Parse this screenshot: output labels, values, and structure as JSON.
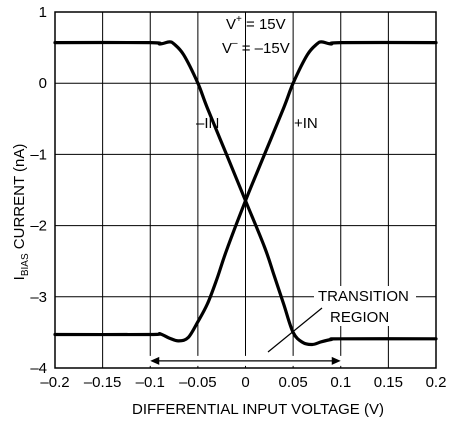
{
  "chart_data": {
    "type": "line",
    "xlabel": "DIFFERENTIAL INPUT VOLTAGE (V)",
    "ylabel": {
      "prefix": "I",
      "subscript": "BIAS",
      "suffix": " CURRENT (nA)"
    },
    "xlim": [
      -0.2,
      0.2
    ],
    "ylim": [
      -4,
      1
    ],
    "xticks": [
      -0.2,
      -0.15,
      -0.1,
      -0.05,
      0,
      0.05,
      0.1,
      0.15,
      0.2
    ],
    "xtick_labels": [
      "–0.2",
      "–0.15",
      "–0.1",
      "–0.05",
      "0",
      "0.05",
      "0.1",
      "0.15",
      "0.2"
    ],
    "yticks": [
      1,
      0,
      -1,
      -2,
      -3,
      -4
    ],
    "ytick_labels": [
      "1",
      "0",
      "–1",
      "–2",
      "–3",
      "–4"
    ],
    "grid": true,
    "series": [
      {
        "name": "–IN",
        "x": [
          -0.2,
          -0.1,
          -0.09,
          -0.08,
          -0.075,
          -0.065,
          -0.05,
          -0.04,
          -0.02,
          0,
          0.02,
          0.03,
          0.04,
          0.05,
          0.06,
          0.07,
          0.08,
          0.09,
          0.1,
          0.2
        ],
        "y": [
          0.57,
          0.57,
          0.55,
          0.58,
          0.55,
          0.4,
          0.0,
          -0.35,
          -1.0,
          -1.65,
          -2.3,
          -2.7,
          -3.1,
          -3.5,
          -3.64,
          -3.67,
          -3.63,
          -3.6,
          -3.59,
          -3.59
        ]
      },
      {
        "name": "+IN",
        "x": [
          -0.2,
          -0.1,
          -0.09,
          -0.08,
          -0.07,
          -0.06,
          -0.05,
          -0.04,
          -0.03,
          -0.02,
          0,
          0.02,
          0.04,
          0.05,
          0.065,
          0.075,
          0.08,
          0.09,
          0.1,
          0.2
        ],
        "y": [
          -3.53,
          -3.53,
          -3.52,
          -3.58,
          -3.62,
          -3.57,
          -3.35,
          -3.1,
          -2.75,
          -2.35,
          -1.65,
          -1.0,
          -0.35,
          0.0,
          0.4,
          0.55,
          0.58,
          0.55,
          0.57,
          0.57
        ]
      }
    ],
    "annotations": {
      "vplus_prefix": "V",
      "vplus_sup": "+",
      "vplus_suffix": " = 15V",
      "vminus_prefix": "V",
      "vminus_sup": "–",
      "vminus_suffix": " = –15V",
      "minus_in": "–IN",
      "plus_in": "+IN",
      "transition_line1": "TRANSITION",
      "transition_line2": "REGION",
      "transition_range": [
        -0.1,
        0.1
      ],
      "transition_arrow_y": -3.9
    }
  }
}
